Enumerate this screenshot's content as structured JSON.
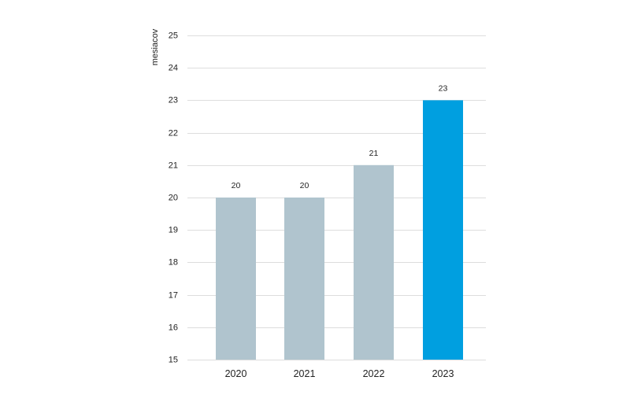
{
  "chart_data": {
    "type": "bar",
    "title": "",
    "xlabel": "",
    "ylabel": "mesiacov",
    "categories": [
      "2020",
      "2021",
      "2022",
      "2023"
    ],
    "values": [
      20,
      20,
      21,
      23
    ],
    "data_labels": [
      "20",
      "20",
      "21",
      "23"
    ],
    "ylim": [
      15,
      25
    ],
    "yticks": [
      15,
      16,
      17,
      18,
      19,
      20,
      21,
      22,
      23,
      24,
      25
    ],
    "grid": true,
    "legend": "none",
    "colors": {
      "default_bar": "#b0c4ce",
      "highlight_bar": "#009fe0",
      "highlight_index": 3,
      "gridline": "#dddddd",
      "text": "#222222"
    }
  }
}
